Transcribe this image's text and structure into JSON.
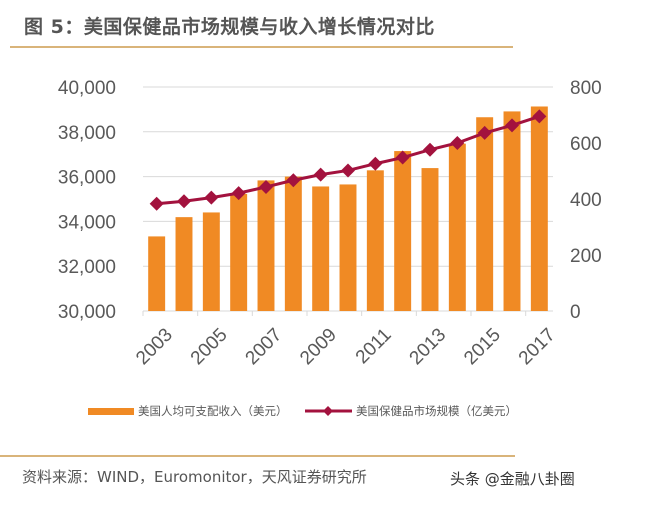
{
  "title": "图 5：美国保健品市场规模与收入增长情况对比",
  "source": "资料来源：WIND，Euromonitor，天风证券研究所",
  "watermark": "头条 @金融八卦圈",
  "chart_data": {
    "type": "bar+line",
    "categories": [
      "2003",
      "2004",
      "2005",
      "2006",
      "2007",
      "2008",
      "2009",
      "2010",
      "2011",
      "2012",
      "2013",
      "2014",
      "2015",
      "2016",
      "2017"
    ],
    "x_tick_labels": [
      "2003",
      "2005",
      "2007",
      "2009",
      "2011",
      "2013",
      "2015",
      "2017"
    ],
    "series": [
      {
        "name": "美国人均可支配收入（美元）",
        "type": "bar",
        "axis": "left",
        "color": "#f08a24",
        "values": [
          33330,
          34190,
          34400,
          35230,
          35830,
          36000,
          35560,
          35650,
          36280,
          37140,
          36380,
          37470,
          38650,
          38910,
          39130
        ]
      },
      {
        "name": "美国保健品市场规模（亿美元）",
        "type": "line",
        "axis": "right",
        "color": "#a3123e",
        "values": [
          383,
          392,
          405,
          421,
          443,
          467,
          487,
          502,
          526,
          548,
          576,
          600,
          636,
          663,
          695
        ]
      }
    ],
    "ylim_left": [
      30000,
      40000
    ],
    "yticks_left": [
      "30,000",
      "32,000",
      "34,000",
      "36,000",
      "38,000",
      "40,000"
    ],
    "ylim_right": [
      0,
      800
    ],
    "yticks_right": [
      "0",
      "200",
      "400",
      "600",
      "800"
    ],
    "grid": true,
    "legend": "bottom"
  }
}
